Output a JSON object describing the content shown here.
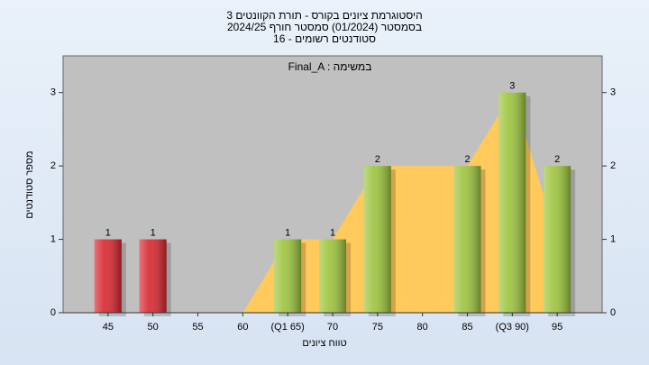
{
  "chart_data": {
    "type": "bar",
    "title": "היסטוגרמת ציונים בקורס - תורת הקוונטים 3",
    "subtitle": "בסמסטר  (01/2024)  סמסטר חורף 2024/25",
    "subtitle2": "סטודנטים רשומים - 16",
    "annotation": "Final_A : במשימה",
    "ylabel": "מספר סטודנטים",
    "xlabel": "טווח ציונים",
    "categories": [
      "45",
      "50",
      "55",
      "60",
      "(Q1 65)",
      "70",
      "75",
      "80",
      "85",
      "(Q3 90)",
      "95"
    ],
    "values": [
      1,
      1,
      0,
      0,
      1,
      1,
      2,
      0,
      2,
      3,
      2
    ],
    "colors": [
      "#d8262e",
      "#d8262e",
      "#9cc43c",
      "#9cc43c",
      "#9cc43c",
      "#9cc43c",
      "#9cc43c",
      "#9cc43c",
      "#9cc43c",
      "#9cc43c",
      "#9cc43c"
    ],
    "area": {
      "color": "#ffc95c",
      "values": [
        null,
        null,
        null,
        0,
        1,
        1,
        2,
        2,
        2,
        3,
        1
      ]
    },
    "ylim": [
      0,
      3.5
    ],
    "yticks": [
      0,
      1,
      2,
      3
    ],
    "grid": false
  }
}
